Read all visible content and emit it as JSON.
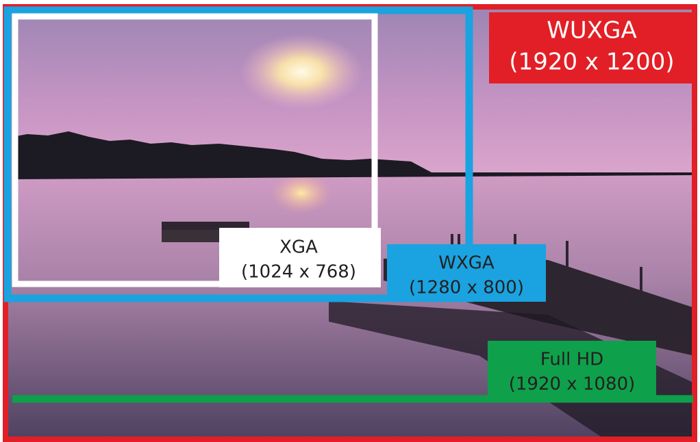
{
  "frames": [
    {
      "name": "WUXGA",
      "resolution": "(1920 x 1200)"
    },
    {
      "name": "WXGA",
      "resolution": "(1280 x 800)"
    },
    {
      "name": "XGA",
      "resolution": "(1024 x 768)"
    },
    {
      "name": "Full HD",
      "resolution": "(1920 x 1080)"
    }
  ]
}
